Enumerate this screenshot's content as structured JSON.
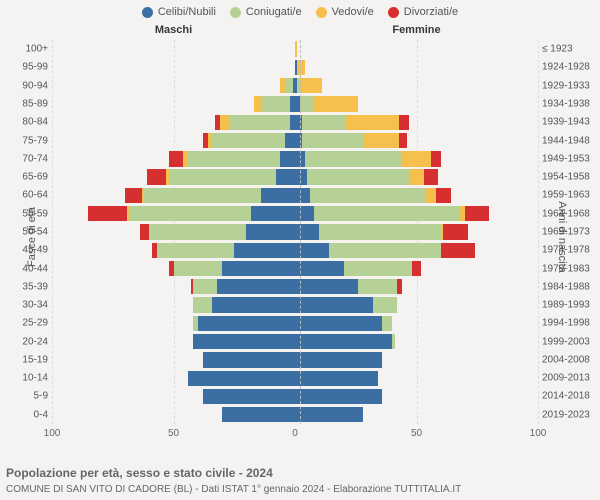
{
  "legend": [
    {
      "label": "Celibi/Nubili",
      "color": "#3b6fa3"
    },
    {
      "label": "Coniugati/e",
      "color": "#b6d196"
    },
    {
      "label": "Vedovi/e",
      "color": "#f5c04e"
    },
    {
      "label": "Divorziati/e",
      "color": "#d62f2f"
    }
  ],
  "header": {
    "m": "Maschi",
    "f": "Femmine"
  },
  "axis_left_title": "Fasce di età",
  "axis_right_title": "Anni di nascita",
  "x_ticks": [
    {
      "pos_pct": 0,
      "label": "100"
    },
    {
      "pos_pct": 25,
      "label": "50"
    },
    {
      "pos_pct": 50,
      "label": "0"
    },
    {
      "pos_pct": 75,
      "label": "50"
    },
    {
      "pos_pct": 100,
      "label": "100"
    }
  ],
  "x_gridlines_pct": [
    0,
    25,
    75,
    100
  ],
  "x_max": 100,
  "title": "Popolazione per età, sesso e stato civile - 2024",
  "subtitle": "COMUNE DI SAN VITO DI CADORE (BL) - Dati ISTAT 1° gennaio 2024 - Elaborazione TUTTITALIA.IT",
  "rows": [
    {
      "age": "100+",
      "year": "≤ 1923",
      "m": {
        "celibi": 0,
        "coniugati": 0,
        "vedovi": 0,
        "divorziati": 0
      },
      "f": {
        "celibi": 0,
        "coniugati": 0,
        "vedovi": 1,
        "divorziati": 0
      }
    },
    {
      "age": "95-99",
      "year": "1924-1928",
      "m": {
        "celibi": 0,
        "coniugati": 0,
        "vedovi": 0,
        "divorziati": 0
      },
      "f": {
        "celibi": 1,
        "coniugati": 0,
        "vedovi": 3,
        "divorziati": 0
      }
    },
    {
      "age": "90-94",
      "year": "1929-1933",
      "m": {
        "celibi": 1,
        "coniugati": 3,
        "vedovi": 2,
        "divorziati": 0
      },
      "f": {
        "celibi": 1,
        "coniugati": 1,
        "vedovi": 9,
        "divorziati": 0
      }
    },
    {
      "age": "85-89",
      "year": "1934-1938",
      "m": {
        "celibi": 2,
        "coniugati": 12,
        "vedovi": 3,
        "divorziati": 0
      },
      "f": {
        "celibi": 2,
        "coniugati": 6,
        "vedovi": 18,
        "divorziati": 0
      }
    },
    {
      "age": "80-84",
      "year": "1939-1943",
      "m": {
        "celibi": 2,
        "coniugati": 25,
        "vedovi": 4,
        "divorziati": 2
      },
      "f": {
        "celibi": 3,
        "coniugati": 18,
        "vedovi": 22,
        "divorziati": 4
      }
    },
    {
      "age": "75-79",
      "year": "1944-1948",
      "m": {
        "celibi": 4,
        "coniugati": 30,
        "vedovi": 2,
        "divorziati": 2
      },
      "f": {
        "celibi": 3,
        "coniugati": 25,
        "vedovi": 15,
        "divorziati": 3
      }
    },
    {
      "age": "70-74",
      "year": "1949-1953",
      "m": {
        "celibi": 6,
        "coniugati": 38,
        "vedovi": 2,
        "divorziati": 6
      },
      "f": {
        "celibi": 4,
        "coniugati": 40,
        "vedovi": 12,
        "divorziati": 4
      }
    },
    {
      "age": "65-69",
      "year": "1954-1958",
      "m": {
        "celibi": 8,
        "coniugati": 44,
        "vedovi": 1,
        "divorziati": 8
      },
      "f": {
        "celibi": 5,
        "coniugati": 42,
        "vedovi": 6,
        "divorziati": 6
      }
    },
    {
      "age": "60-64",
      "year": "1959-1963",
      "m": {
        "celibi": 14,
        "coniugati": 48,
        "vedovi": 1,
        "divorziati": 7
      },
      "f": {
        "celibi": 6,
        "coniugati": 48,
        "vedovi": 4,
        "divorziati": 6
      }
    },
    {
      "age": "55-59",
      "year": "1964-1968",
      "m": {
        "celibi": 18,
        "coniugati": 50,
        "vedovi": 1,
        "divorziati": 16
      },
      "f": {
        "celibi": 8,
        "coniugati": 60,
        "vedovi": 2,
        "divorziati": 10
      }
    },
    {
      "age": "50-54",
      "year": "1969-1973",
      "m": {
        "celibi": 20,
        "coniugati": 40,
        "vedovi": 0,
        "divorziati": 4
      },
      "f": {
        "celibi": 10,
        "coniugati": 50,
        "vedovi": 1,
        "divorziati": 10
      }
    },
    {
      "age": "45-49",
      "year": "1974-1978",
      "m": {
        "celibi": 25,
        "coniugati": 32,
        "vedovi": 0,
        "divorziati": 2
      },
      "f": {
        "celibi": 14,
        "coniugati": 46,
        "vedovi": 0,
        "divorziati": 14
      }
    },
    {
      "age": "40-44",
      "year": "1979-1983",
      "m": {
        "celibi": 30,
        "coniugati": 20,
        "vedovi": 0,
        "divorziati": 2
      },
      "f": {
        "celibi": 20,
        "coniugati": 28,
        "vedovi": 0,
        "divorziati": 4
      }
    },
    {
      "age": "35-39",
      "year": "1984-1988",
      "m": {
        "celibi": 32,
        "coniugati": 10,
        "vedovi": 0,
        "divorziati": 1
      },
      "f": {
        "celibi": 26,
        "coniugati": 16,
        "vedovi": 0,
        "divorziati": 2
      }
    },
    {
      "age": "30-34",
      "year": "1989-1993",
      "m": {
        "celibi": 34,
        "coniugati": 8,
        "vedovi": 0,
        "divorziati": 0
      },
      "f": {
        "celibi": 32,
        "coniugati": 10,
        "vedovi": 0,
        "divorziati": 0
      }
    },
    {
      "age": "25-29",
      "year": "1994-1998",
      "m": {
        "celibi": 40,
        "coniugati": 2,
        "vedovi": 0,
        "divorziati": 0
      },
      "f": {
        "celibi": 36,
        "coniugati": 4,
        "vedovi": 0,
        "divorziati": 0
      }
    },
    {
      "age": "20-24",
      "year": "1999-2003",
      "m": {
        "celibi": 42,
        "coniugati": 0,
        "vedovi": 0,
        "divorziati": 0
      },
      "f": {
        "celibi": 40,
        "coniugati": 1,
        "vedovi": 0,
        "divorziati": 0
      }
    },
    {
      "age": "15-19",
      "year": "2004-2008",
      "m": {
        "celibi": 38,
        "coniugati": 0,
        "vedovi": 0,
        "divorziati": 0
      },
      "f": {
        "celibi": 36,
        "coniugati": 0,
        "vedovi": 0,
        "divorziati": 0
      }
    },
    {
      "age": "10-14",
      "year": "2009-2013",
      "m": {
        "celibi": 44,
        "coniugati": 0,
        "vedovi": 0,
        "divorziati": 0
      },
      "f": {
        "celibi": 34,
        "coniugati": 0,
        "vedovi": 0,
        "divorziati": 0
      }
    },
    {
      "age": "5-9",
      "year": "2014-2018",
      "m": {
        "celibi": 38,
        "coniugati": 0,
        "vedovi": 0,
        "divorziati": 0
      },
      "f": {
        "celibi": 36,
        "coniugati": 0,
        "vedovi": 0,
        "divorziati": 0
      }
    },
    {
      "age": "0-4",
      "year": "2019-2023",
      "m": {
        "celibi": 30,
        "coniugati": 0,
        "vedovi": 0,
        "divorziati": 0
      },
      "f": {
        "celibi": 28,
        "coniugati": 0,
        "vedovi": 0,
        "divorziati": 0
      }
    }
  ]
}
